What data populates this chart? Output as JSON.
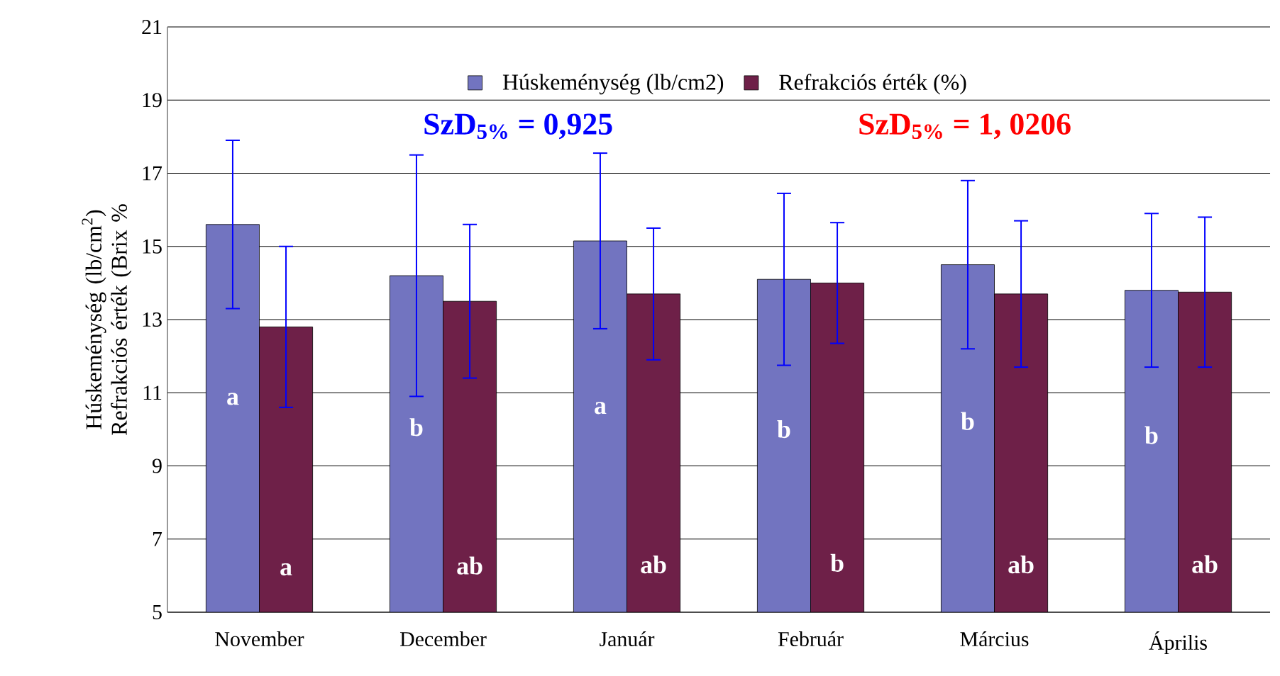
{
  "chart_data": {
    "type": "bar",
    "ylabel": "Húskeménység (lb/cm$^{2}$) Refrakciós érték (Brix %",
    "categories": [
      "November",
      "December",
      "Január",
      "Február",
      "Március",
      "Április"
    ],
    "series": [
      {
        "name": "Húskeménység (lb/cm2)",
        "color": "#7274c0",
        "values": [
          15.6,
          14.2,
          15.15,
          14.1,
          14.5,
          13.8
        ],
        "errors": [
          2.3,
          3.3,
          2.4,
          2.35,
          2.3,
          2.1
        ],
        "value_labels": [
          "a",
          "b",
          "a",
          "b",
          "b",
          "b"
        ]
      },
      {
        "name": "Refrakciós érték (%)",
        "color": "#6e2048",
        "values": [
          12.8,
          13.5,
          13.7,
          14.0,
          13.7,
          13.75
        ],
        "errors": [
          2.2,
          2.1,
          1.8,
          1.65,
          2.0,
          2.05
        ],
        "value_labels": [
          "a",
          "ab",
          "ab",
          "b",
          "ab",
          "ab"
        ]
      }
    ],
    "annotations": [
      "SzD$_{5%}$ = 0,925",
      "SzD$_{5%}$ = 1, 0206"
    ],
    "ylim": [
      5,
      21
    ],
    "yticks": [
      5,
      7,
      9,
      11,
      13,
      15,
      17,
      19,
      21
    ],
    "grid": "y",
    "legend": "top"
  }
}
